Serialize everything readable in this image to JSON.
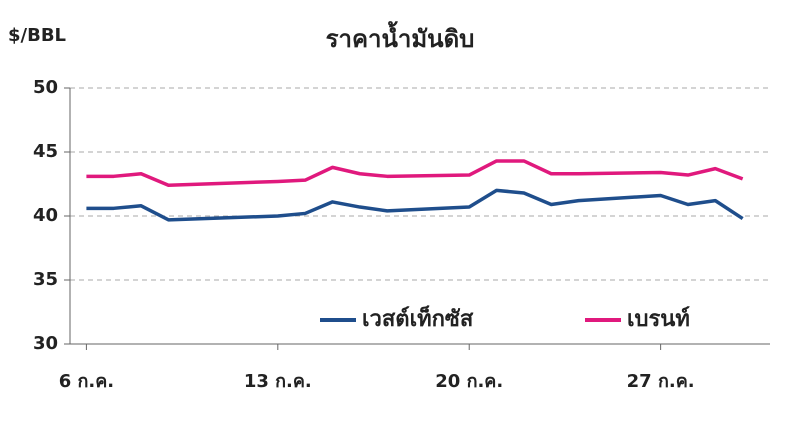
{
  "chart_data": {
    "type": "line",
    "title": "ราคาน้ำมันดิบ",
    "y_label": "$/BBL",
    "x": [
      6,
      7,
      8,
      9,
      13,
      14,
      15,
      16,
      17,
      20,
      21,
      22,
      23,
      24,
      27,
      28,
      29,
      30
    ],
    "series": [
      {
        "name": "เวสต์เท็กซัส",
        "color": "#1f4e8c",
        "values": [
          40.6,
          40.6,
          40.8,
          39.7,
          40.0,
          40.2,
          41.1,
          40.7,
          40.4,
          40.7,
          42.0,
          41.8,
          40.9,
          41.2,
          41.6,
          40.9,
          41.2,
          39.8
        ]
      },
      {
        "name": "เบรนท์",
        "color": "#e0197d",
        "values": [
          43.1,
          43.1,
          43.3,
          42.4,
          42.7,
          42.8,
          43.8,
          43.3,
          43.1,
          43.2,
          44.3,
          44.3,
          43.3,
          43.3,
          43.4,
          43.2,
          43.7,
          42.9
        ]
      }
    ],
    "xlim": [
      5.4,
      31.0
    ],
    "xticks": [
      {
        "value": 6,
        "label": "6 ก.ค."
      },
      {
        "value": 13,
        "label": "13 ก.ค."
      },
      {
        "value": 20,
        "label": "20 ก.ค."
      },
      {
        "value": 27,
        "label": "27 ก.ค."
      }
    ],
    "ylim": [
      30,
      50
    ],
    "yticks": [
      30,
      35,
      40,
      45,
      50
    ],
    "grid": true
  }
}
